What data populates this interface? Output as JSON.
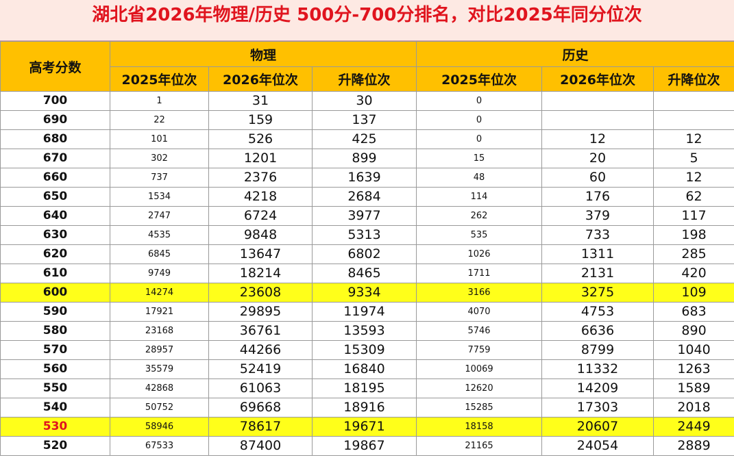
{
  "header": {
    "title": "湖北省2026年物理/历史  500分-700分排名，对比2025年同分位次"
  },
  "table": {
    "corner": "高考分数",
    "groups": [
      "物理",
      "历史"
    ],
    "subheaders": [
      "2025年位次",
      "2026年位次",
      "升降位次",
      "2025年位次",
      "2026年位次",
      "升降位次"
    ],
    "rows": [
      [
        700,
        1,
        31,
        30,
        0
      ],
      [
        690,
        22,
        159,
        137,
        0
      ],
      [
        680,
        101,
        526,
        425,
        0,
        12,
        12
      ],
      [
        670,
        302,
        1201,
        899,
        15,
        20,
        5
      ],
      [
        660,
        737,
        2376,
        1639,
        48,
        60,
        12
      ],
      [
        650,
        1534,
        4218,
        2684,
        114,
        176,
        62
      ],
      [
        640,
        2747,
        6724,
        3977,
        262,
        379,
        117
      ],
      [
        630,
        4535,
        9848,
        5313,
        535,
        733,
        198
      ],
      [
        620,
        6845,
        13647,
        6802,
        1026,
        1311,
        285
      ],
      [
        610,
        9749,
        18214,
        8465,
        1711,
        2131,
        420
      ],
      [
        600,
        14274,
        23608,
        9334,
        3166,
        3275,
        109
      ],
      [
        590,
        17921,
        29895,
        11974,
        4070,
        4753,
        683
      ],
      [
        580,
        23168,
        36761,
        13593,
        5746,
        6636,
        890
      ],
      [
        570,
        28957,
        44266,
        15309,
        7759,
        8799,
        1040
      ],
      [
        560,
        35579,
        52419,
        16840,
        10069,
        11332,
        1263
      ],
      [
        550,
        42868,
        61063,
        18195,
        12620,
        14209,
        1589
      ],
      [
        540,
        50752,
        69668,
        18916,
        15285,
        17303,
        2018
      ],
      [
        530,
        58946,
        78617,
        19671,
        18158,
        20607,
        2449
      ],
      [
        520,
        67533,
        87400,
        19867,
        21165,
        24054,
        2889
      ]
    ]
  }
}
